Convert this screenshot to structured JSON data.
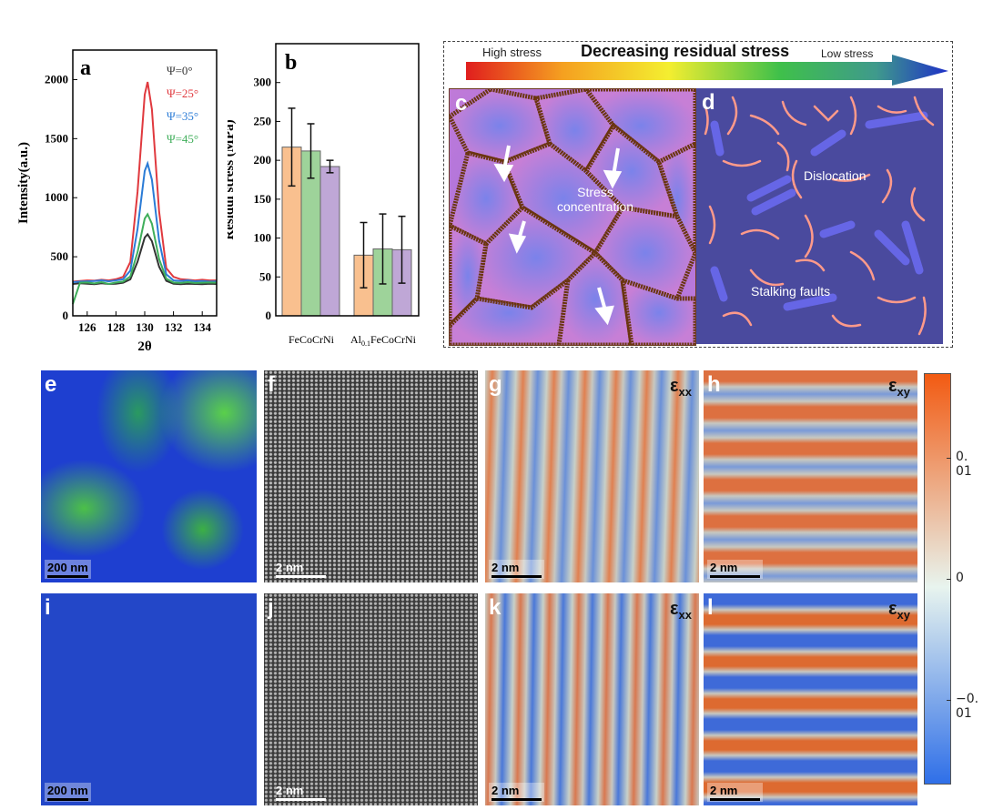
{
  "panels": {
    "a": {
      "letter": "a"
    },
    "b": {
      "letter": "b"
    },
    "c": {
      "letter": "c",
      "label": "Stress concentration"
    },
    "d": {
      "letter": "d",
      "label_1": "Dislocation",
      "label_2": "Stalking faults"
    },
    "e": {
      "letter": "e",
      "scale": "200 nm"
    },
    "f": {
      "letter": "f",
      "scale": "2 nm"
    },
    "g": {
      "letter": "g",
      "scale": "2 nm",
      "strain": "ε",
      "strain_sub": "xx"
    },
    "h": {
      "letter": "h",
      "scale": "2 nm",
      "strain": "ε",
      "strain_sub": "xy"
    },
    "i": {
      "letter": "i",
      "scale": "200 nm"
    },
    "j": {
      "letter": "j",
      "scale": "2 nm"
    },
    "k": {
      "letter": "k",
      "scale": "2 nm",
      "strain": "ε",
      "strain_sub": "xx"
    },
    "l": {
      "letter": "l",
      "scale": "2 nm",
      "strain": "ε",
      "strain_sub": "xy"
    }
  },
  "stress_arrow": {
    "title": "Decreasing residual stress",
    "left_label": "High stress",
    "right_label": "Low stress"
  },
  "colorbar": {
    "ticks": [
      {
        "value": 0.01,
        "label": "0. 01"
      },
      {
        "value": 0,
        "label": "0"
      },
      {
        "value": -0.01,
        "label": "−0. 01"
      }
    ],
    "range": [
      -0.017,
      0.017
    ],
    "colors": [
      "#2f6fe8",
      "#e8f4ee",
      "#f25a12"
    ]
  },
  "chart_data": [
    {
      "type": "line",
      "panel": "a",
      "xlabel": "2θ",
      "ylabel": "Intensity(a.u.)",
      "xlim": [
        125,
        135
      ],
      "ylim": [
        0,
        2250
      ],
      "xticks": [
        126,
        128,
        130,
        132,
        134
      ],
      "yticks": [
        0,
        500,
        1000,
        1500,
        2000
      ],
      "legend": "top-right",
      "x": [
        125,
        125.5,
        126,
        126.5,
        127,
        127.5,
        128,
        128.5,
        129,
        129.5,
        130,
        130.2,
        130.5,
        131,
        131.5,
        132,
        132.5,
        133,
        133.5,
        134,
        134.5,
        135
      ],
      "series": [
        {
          "name": "Ψ=0°",
          "color": "#333333",
          "values": [
            270,
            275,
            272,
            268,
            275,
            270,
            272,
            280,
            309,
            457,
            663,
            690,
            632,
            416,
            296,
            272,
            268,
            272,
            270,
            268,
            272,
            270
          ]
        },
        {
          "name": "Ψ=25°",
          "color": "#e0393e",
          "values": [
            290,
            295,
            300,
            298,
            305,
            300,
            310,
            330,
            456,
            1048,
            1872,
            1980,
            1748,
            883,
            403,
            330,
            310,
            305,
            300,
            305,
            300,
            300
          ]
        },
        {
          "name": "Ψ=35°",
          "color": "#2a7bd6",
          "values": [
            285,
            290,
            292,
            295,
            300,
            292,
            300,
            310,
            383,
            735,
            1226,
            1290,
            1152,
            637,
            351,
            300,
            295,
            300,
            292,
            295,
            290,
            292
          ]
        },
        {
          "name": "Ψ=45°",
          "color": "#3fae5a",
          "values": [
            100,
            280,
            282,
            275,
            285,
            270,
            282,
            290,
            334,
            538,
            823,
            860,
            780,
            481,
            315,
            282,
            278,
            285,
            278,
            280,
            282,
            280
          ]
        }
      ]
    },
    {
      "type": "bar",
      "panel": "b",
      "ylabel": "Residul stress (MPa)",
      "ylim": [
        0,
        350
      ],
      "yticks": [
        0,
        50,
        100,
        150,
        200,
        250,
        300
      ],
      "categories": [
        "FeCoCrNi",
        "Al0.1FeCoCrNi"
      ],
      "category_labels": [
        {
          "main": "FeCoCrNi"
        },
        {
          "pre": "Al",
          "sub": "0.1",
          "post": "FeCoCrNi"
        }
      ],
      "series": [
        {
          "color": "#f9c08f",
          "values": [
            217,
            78
          ],
          "errors": [
            50,
            42
          ]
        },
        {
          "color": "#9ed39a",
          "values": [
            212,
            86
          ],
          "errors": [
            35,
            45
          ]
        },
        {
          "color": "#bfa7d6",
          "values": [
            192,
            85
          ],
          "errors": [
            8,
            43
          ]
        }
      ]
    }
  ]
}
